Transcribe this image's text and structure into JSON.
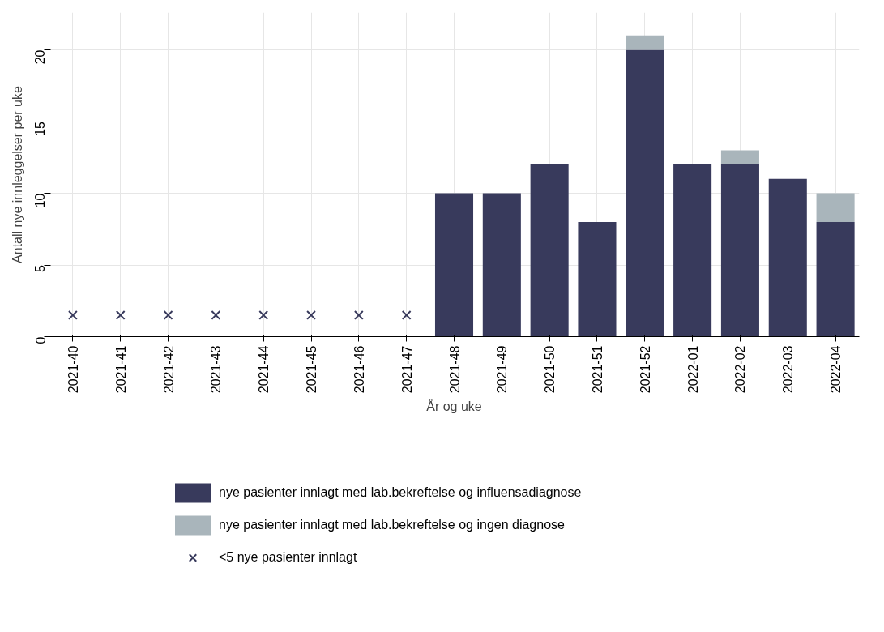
{
  "chart_data": {
    "type": "bar",
    "stacked": true,
    "xlabel": "År og uke",
    "ylabel": "Antall nye innleggelser per uke",
    "categories": [
      "2021-40",
      "2021-41",
      "2021-42",
      "2021-43",
      "2021-44",
      "2021-45",
      "2021-46",
      "2021-47",
      "2021-48",
      "2021-49",
      "2021-50",
      "2021-51",
      "2021-52",
      "2022-01",
      "2022-02",
      "2022-03",
      "2022-04"
    ],
    "series": [
      {
        "name": "nye pasienter innlagt med lab.bekreftelse og influensadiagnose",
        "color": "#383a5c",
        "values": [
          null,
          null,
          null,
          null,
          null,
          null,
          null,
          null,
          10,
          10,
          12,
          8,
          20,
          12,
          12,
          11,
          8
        ]
      },
      {
        "name": "nye pasienter innlagt med lab.bekreftelse og ingen diagnose",
        "color": "#a9b5bb",
        "values": [
          null,
          null,
          null,
          null,
          null,
          null,
          null,
          null,
          0,
          0,
          0,
          0,
          1,
          0,
          1,
          0,
          2
        ]
      },
      {
        "name": "<5 nye pasienter innlagt",
        "type": "scatter",
        "marker": "cross",
        "color": "#383a5c",
        "x": [
          "2021-40",
          "2021-41",
          "2021-42",
          "2021-43",
          "2021-44",
          "2021-45",
          "2021-46",
          "2021-47"
        ],
        "values": [
          1.5,
          1.5,
          1.5,
          1.5,
          1.5,
          1.5,
          1.5,
          1.5
        ]
      }
    ],
    "ylim": [
      0,
      22.6
    ],
    "yticks": [
      0,
      5,
      10,
      15,
      20
    ],
    "grid": true,
    "legend": "bottom"
  }
}
